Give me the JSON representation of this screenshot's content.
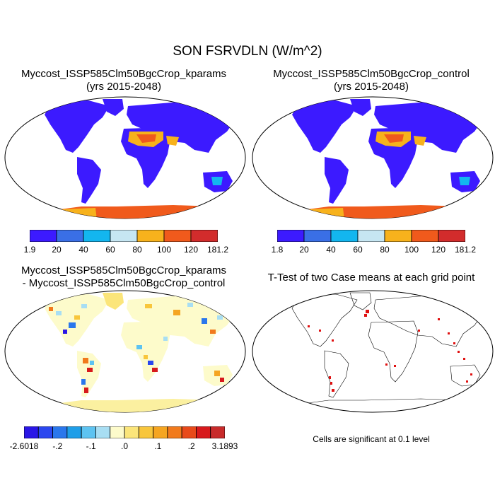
{
  "title": "SON FSRVDLN (W/m^2)",
  "panels": {
    "p1": {
      "title_line1": "Myccost_ISSP585Clm50BgcCrop_kparams",
      "title_line2": "(yrs 2015-2048)"
    },
    "p2": {
      "title_line1": "Myccost_ISSP585Clm50BgcCrop_control",
      "title_line2": "(yrs 2015-2048)"
    },
    "p3": {
      "title_line1": "Myccost_ISSP585Clm50BgcCrop_kparams",
      "title_line2": "- Myccost_ISSP585Clm50BgcCrop_control"
    },
    "p4": {
      "title_line1": "T-Test of two Case means at each grid point",
      "note": "Cells are significant at 0.1 level"
    }
  },
  "colorbars": {
    "cb1": {
      "colors": [
        "#3c1aff",
        "#3a6fe6",
        "#13b6ef",
        "#c6e6f2",
        "#f7b21c",
        "#f05a1c",
        "#d22c2c"
      ],
      "labels": [
        "1.9",
        "20",
        "40",
        "60",
        "80",
        "100",
        "120",
        "181.2"
      ]
    },
    "cb2": {
      "colors": [
        "#3c1aff",
        "#3a6fe6",
        "#13b6ef",
        "#c6e6f2",
        "#f7b21c",
        "#f05a1c",
        "#d22c2c"
      ],
      "labels": [
        "1.8",
        "20",
        "40",
        "60",
        "80",
        "100",
        "120",
        "181.2"
      ]
    },
    "cb3": {
      "colors": [
        "#2a16e6",
        "#2b47ef",
        "#2a77ec",
        "#1f9ee8",
        "#5dc3f1",
        "#a8def3",
        "#fdfbcb",
        "#fbe57a",
        "#f8c63c",
        "#f5a521",
        "#f17a1c",
        "#e84a1a",
        "#d7191c",
        "#c82b2b"
      ],
      "labels": [
        "-2.6018",
        "-.2",
        "-.1",
        ".0",
        ".1",
        ".2",
        "3.1893"
      ]
    }
  }
}
